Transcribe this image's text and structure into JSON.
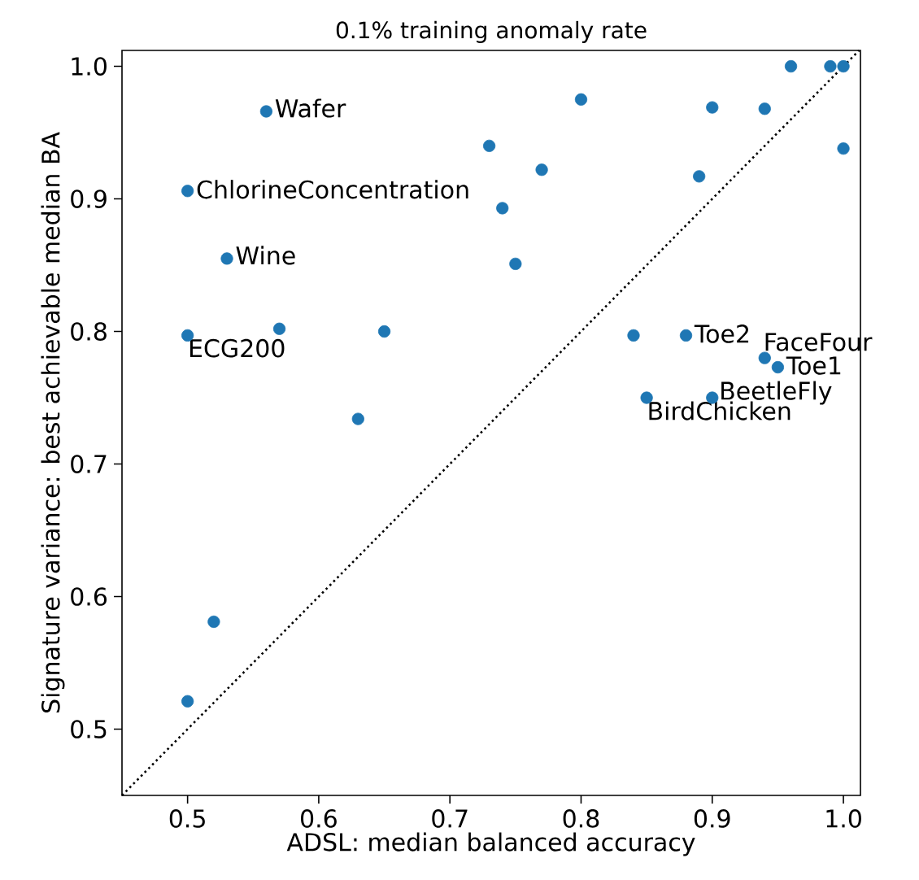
{
  "chart_data": {
    "type": "scatter",
    "title": "0.1% training anomaly rate",
    "xlabel": "ADSL: median balanced accuracy",
    "ylabel": "Signature variance: best achievable median BA",
    "xlim": [
      0.45,
      1.013
    ],
    "ylim": [
      0.45,
      1.012
    ],
    "xticks": [
      0.5,
      0.6,
      0.7,
      0.8,
      0.9,
      {
        "value": 1.0,
        "label": "1.0"
      }
    ],
    "yticks": [
      0.5,
      0.6,
      0.7,
      0.8,
      0.9,
      {
        "value": 1.0,
        "label": "1.0"
      }
    ],
    "grid": false,
    "marker": "circle",
    "series": [
      {
        "color": "#1f77b4",
        "x": [
          0.56,
          0.5,
          0.53,
          0.5,
          0.57,
          0.65,
          0.63,
          0.52,
          0.5,
          0.73,
          0.74,
          0.77,
          0.75,
          0.8,
          0.9,
          0.94,
          0.89,
          0.96,
          0.99,
          1.0,
          1.0,
          0.84,
          0.88,
          0.94,
          0.95,
          0.85,
          0.9
        ],
        "values": [
          0.966,
          0.906,
          0.855,
          0.797,
          0.802,
          0.8,
          0.734,
          0.581,
          0.521,
          0.94,
          0.893,
          0.922,
          0.851,
          0.975,
          0.969,
          0.968,
          0.917,
          1.0,
          1.0,
          1.0,
          0.938,
          0.797,
          0.797,
          0.78,
          0.773,
          0.75,
          0.75
        ]
      },
      {
        "type": "line",
        "color": "#000000",
        "line_style": "dotted",
        "marker": "none",
        "x": [
          0.45,
          1.012
        ],
        "values": [
          0.45,
          1.012
        ]
      }
    ],
    "annotations": [
      {
        "text": "Wafer",
        "x": 0.56,
        "y": 0.966
      },
      {
        "text": "ChlorineConcentration",
        "x": 0.5,
        "y": 0.906
      },
      {
        "text": "Wine",
        "x": 0.53,
        "y": 0.855
      },
      {
        "text": "ECG200",
        "x": 0.5,
        "y": 0.797
      },
      {
        "text": "Toe2",
        "x": 0.88,
        "y": 0.797
      },
      {
        "text": "FaceFour",
        "x": 0.94,
        "y": 0.78
      },
      {
        "text": "Toe1",
        "x": 0.95,
        "y": 0.773
      },
      {
        "text": "BeetleFly",
        "x": 0.9,
        "y": 0.75
      },
      {
        "text": "BirdChicken",
        "x": 0.85,
        "y": 0.75
      }
    ]
  }
}
